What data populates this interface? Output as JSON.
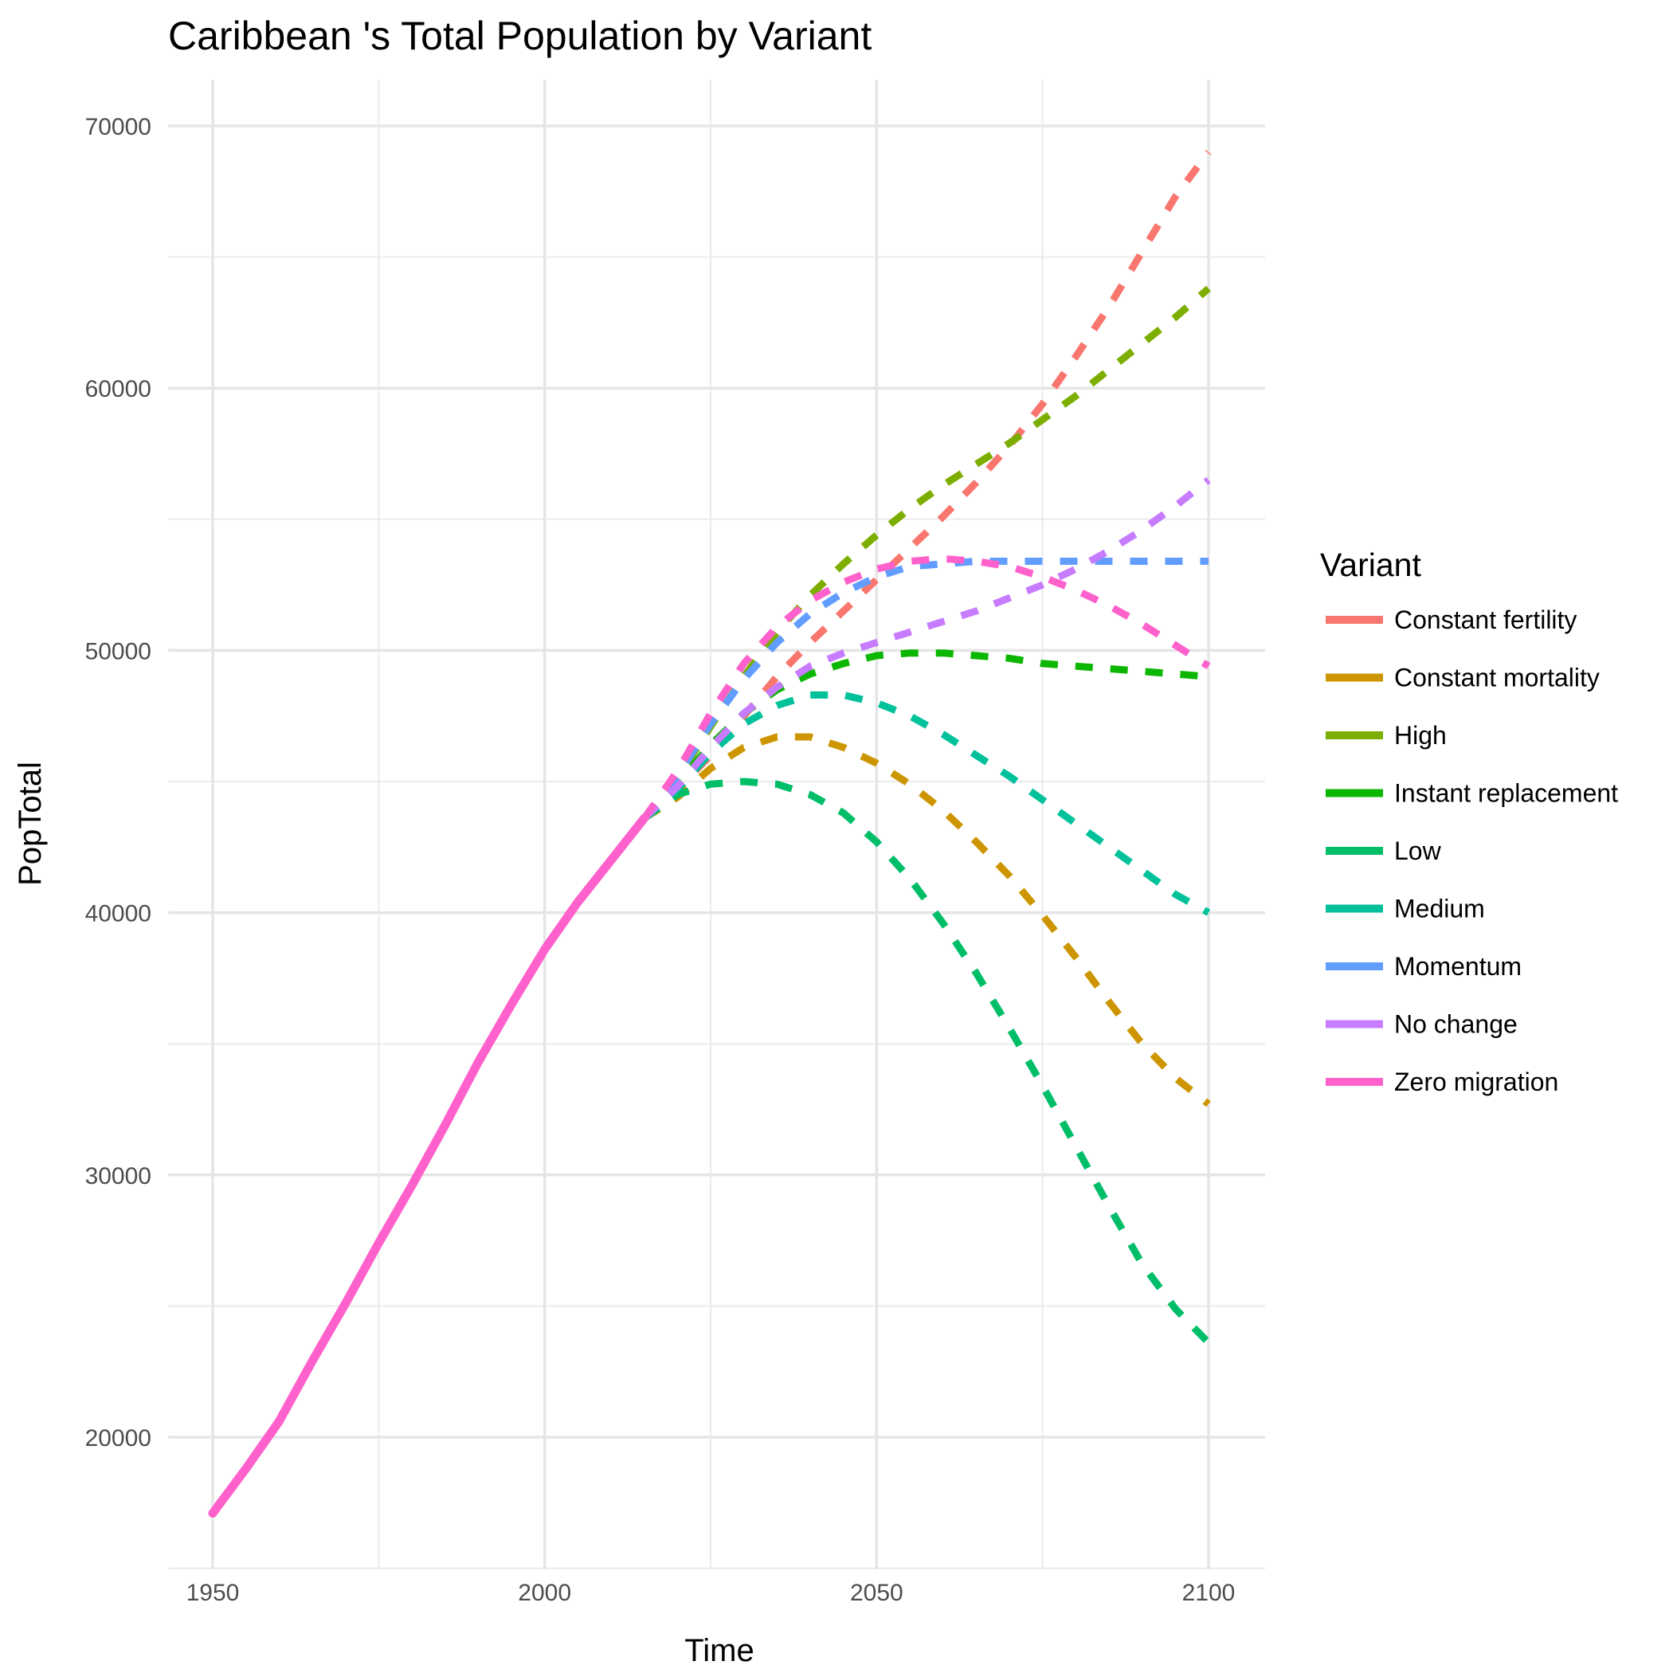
{
  "chart_data": {
    "type": "line",
    "title": "Caribbean 's Total Population by Variant",
    "xlabel": "Time",
    "ylabel": "PopTotal",
    "xlim": [
      1950,
      2100
    ],
    "ylim": [
      15000,
      72000
    ],
    "x_ticks": [
      "1950",
      "2000",
      "2050",
      "2100"
    ],
    "y_ticks": [
      "20000",
      "30000",
      "40000",
      "50000",
      "60000",
      "70000"
    ],
    "grid": true,
    "legend": {
      "title": "Variant",
      "position": "right"
    },
    "historical": {
      "x": [
        1950,
        1955,
        1960,
        1965,
        1970,
        1975,
        1980,
        1985,
        1990,
        1995,
        2000,
        2005,
        2010,
        2015
      ],
      "y": [
        17100,
        18800,
        20600,
        22900,
        25100,
        27400,
        29600,
        31900,
        34300,
        36500,
        38600,
        40400,
        42000,
        43600
      ]
    },
    "series": [
      {
        "name": "Constant fertility",
        "color": "#F8766D",
        "x": [
          2015,
          2020,
          2025,
          2030,
          2035,
          2040,
          2045,
          2050,
          2055,
          2060,
          2065,
          2070,
          2075,
          2080,
          2085,
          2090,
          2095,
          2100
        ],
        "y": [
          43600,
          44700,
          46000,
          47500,
          49000,
          50300,
          51500,
          52700,
          53900,
          55100,
          56400,
          57800,
          59400,
          61200,
          63100,
          65200,
          67300,
          69000
        ]
      },
      {
        "name": "Constant mortality",
        "color": "#CD9600",
        "x": [
          2015,
          2020,
          2025,
          2030,
          2035,
          2040,
          2045,
          2050,
          2055,
          2060,
          2065,
          2070,
          2075,
          2080,
          2085,
          2090,
          2095,
          2100
        ],
        "y": [
          43600,
          44400,
          45500,
          46300,
          46700,
          46700,
          46300,
          45700,
          44900,
          43900,
          42700,
          41400,
          39900,
          38300,
          36600,
          35000,
          33700,
          32700
        ]
      },
      {
        "name": "High",
        "color": "#7CAE00",
        "x": [
          2015,
          2020,
          2025,
          2030,
          2035,
          2040,
          2045,
          2050,
          2055,
          2060,
          2065,
          2070,
          2075,
          2080,
          2085,
          2090,
          2095,
          2100
        ],
        "y": [
          43600,
          45100,
          47100,
          49000,
          50700,
          52100,
          53300,
          54400,
          55400,
          56300,
          57100,
          57900,
          58800,
          59700,
          60700,
          61700,
          62700,
          63800
        ]
      },
      {
        "name": "Instant replacement",
        "color": "#0CB702",
        "x": [
          2015,
          2020,
          2025,
          2030,
          2035,
          2040,
          2045,
          2050,
          2055,
          2060,
          2065,
          2070,
          2075,
          2080,
          2085,
          2090,
          2095,
          2100
        ],
        "y": [
          43600,
          44900,
          46400,
          47600,
          48500,
          49100,
          49500,
          49800,
          49900,
          49900,
          49800,
          49700,
          49500,
          49400,
          49300,
          49200,
          49100,
          49000
        ]
      },
      {
        "name": "Low",
        "color": "#00BE67",
        "x": [
          2015,
          2020,
          2025,
          2030,
          2035,
          2040,
          2045,
          2050,
          2055,
          2060,
          2065,
          2070,
          2075,
          2080,
          2085,
          2090,
          2095,
          2100
        ],
        "y": [
          43600,
          44500,
          44900,
          45000,
          44900,
          44500,
          43800,
          42700,
          41300,
          39600,
          37700,
          35600,
          33400,
          31100,
          28800,
          26600,
          24900,
          23600
        ]
      },
      {
        "name": "Medium",
        "color": "#00C19A",
        "x": [
          2015,
          2020,
          2025,
          2030,
          2035,
          2040,
          2045,
          2050,
          2055,
          2060,
          2065,
          2070,
          2075,
          2080,
          2085,
          2090,
          2095,
          2100
        ],
        "y": [
          43600,
          44700,
          46100,
          47200,
          47900,
          48300,
          48300,
          48000,
          47500,
          46800,
          46000,
          45200,
          44300,
          43400,
          42500,
          41600,
          40700,
          40000
        ]
      },
      {
        "name": "Momentum",
        "color": "#619CFF",
        "x": [
          2015,
          2020,
          2025,
          2030,
          2035,
          2040,
          2045,
          2050,
          2055,
          2060,
          2065,
          2070,
          2075,
          2080,
          2085,
          2090,
          2095,
          2100
        ],
        "y": [
          43600,
          45200,
          47200,
          48900,
          50300,
          51400,
          52200,
          52800,
          53200,
          53300,
          53400,
          53400,
          53400,
          53400,
          53400,
          53400,
          53400,
          53400
        ]
      },
      {
        "name": "No change",
        "color": "#C77CFF",
        "x": [
          2015,
          2020,
          2025,
          2030,
          2035,
          2040,
          2045,
          2050,
          2055,
          2060,
          2065,
          2070,
          2075,
          2080,
          2085,
          2090,
          2095,
          2100
        ],
        "y": [
          43600,
          44800,
          46300,
          47600,
          48600,
          49400,
          49900,
          50300,
          50700,
          51100,
          51500,
          52000,
          52500,
          53100,
          53800,
          54600,
          55500,
          56500
        ]
      },
      {
        "name": "Zero migration",
        "color": "#FF61CC",
        "x": [
          2015,
          2020,
          2025,
          2030,
          2035,
          2040,
          2045,
          2050,
          2055,
          2060,
          2065,
          2070,
          2075,
          2080,
          2085,
          2090,
          2095,
          2100
        ],
        "y": [
          43600,
          45400,
          47600,
          49500,
          50900,
          51900,
          52600,
          53100,
          53400,
          53500,
          53400,
          53200,
          52800,
          52300,
          51700,
          51000,
          50200,
          49400
        ]
      }
    ]
  }
}
